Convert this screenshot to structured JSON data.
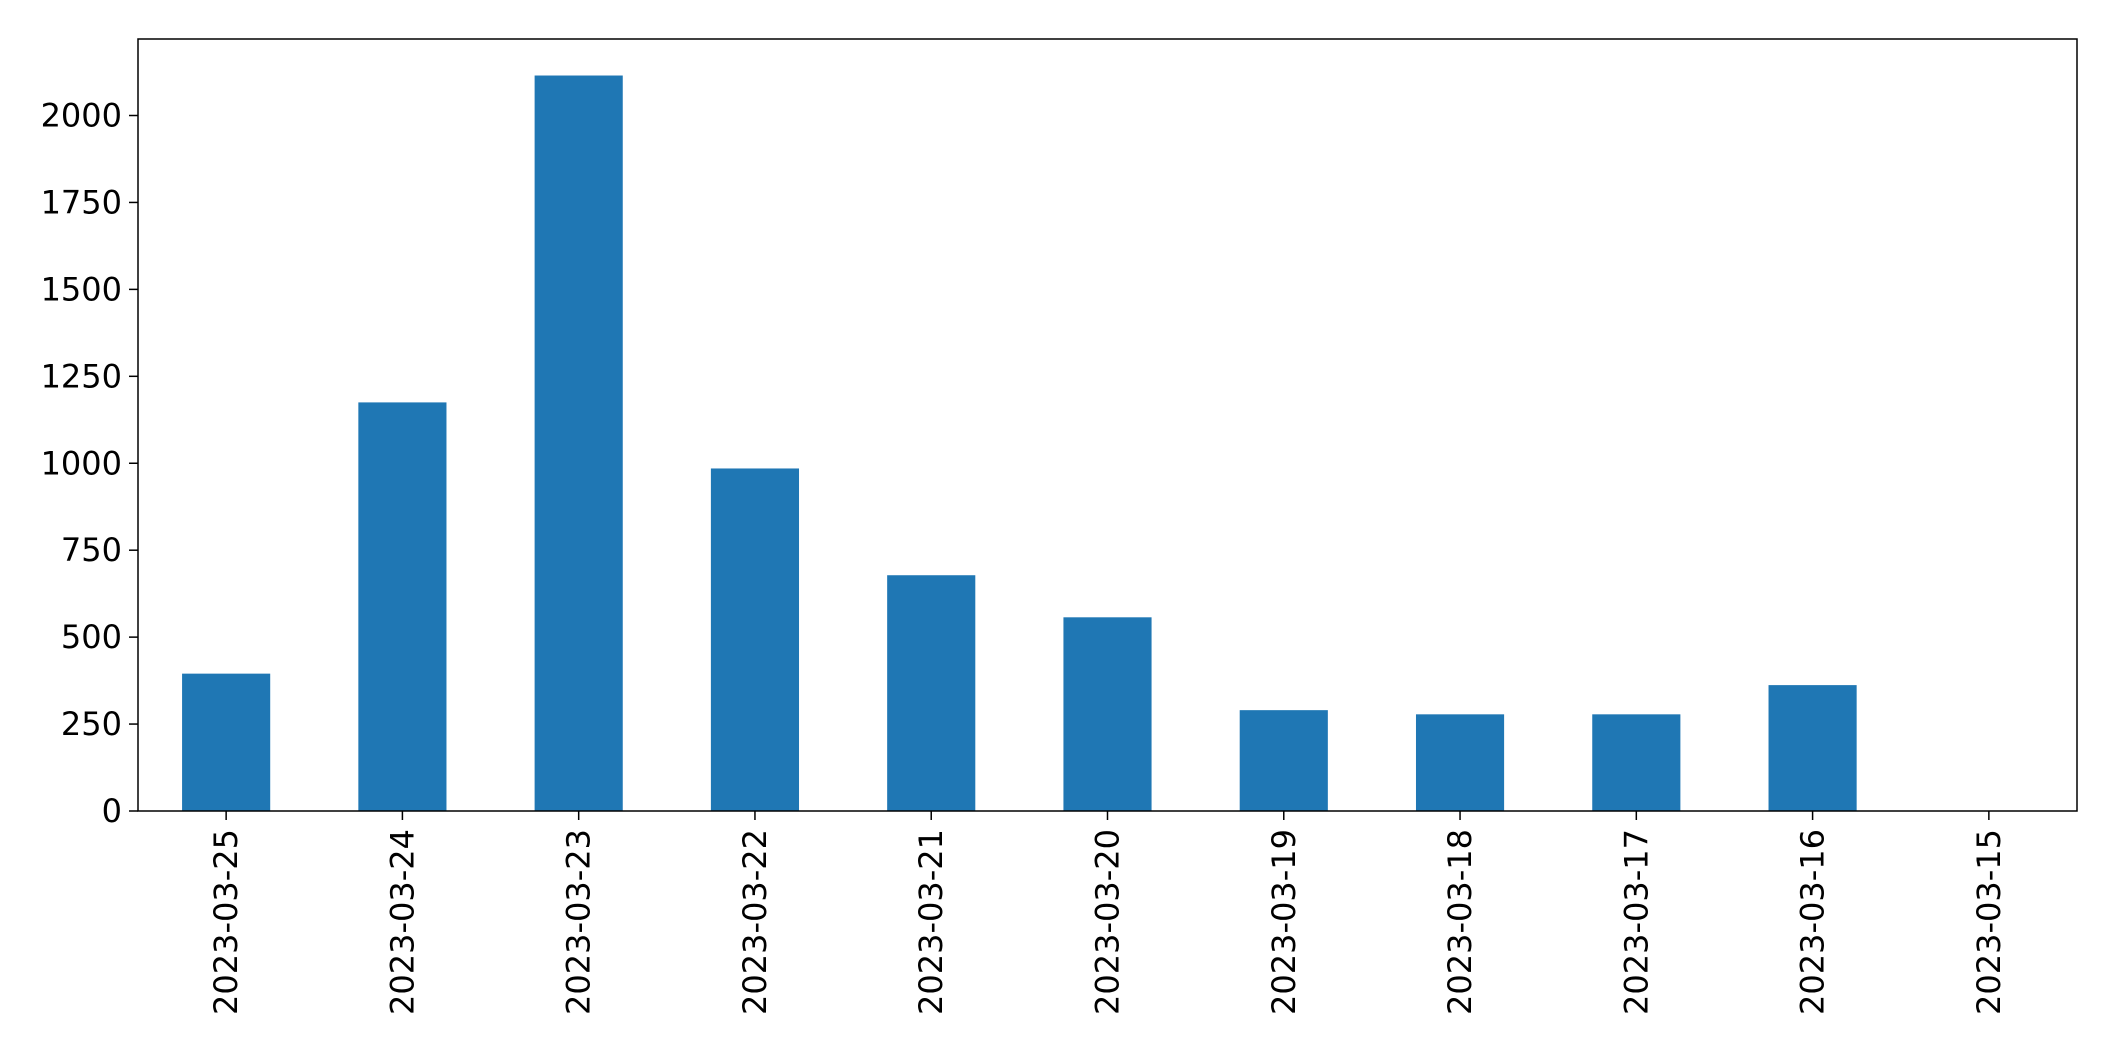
{
  "chart_data": {
    "type": "bar",
    "title": "",
    "xlabel": "",
    "ylabel": "",
    "categories": [
      "2023-03-25",
      "2023-03-24",
      "2023-03-23",
      "2023-03-22",
      "2023-03-21",
      "2023-03-20",
      "2023-03-19",
      "2023-03-18",
      "2023-03-17",
      "2023-03-16",
      "2023-03-15"
    ],
    "values": [
      395,
      1175,
      2115,
      985,
      678,
      557,
      290,
      278,
      278,
      362,
      0
    ],
    "ylim": [
      0,
      2220
    ],
    "yticks": [
      0,
      250,
      500,
      750,
      1000,
      1250,
      1500,
      1750,
      2000
    ],
    "grid": false,
    "bar_color": "#1f77b4"
  }
}
